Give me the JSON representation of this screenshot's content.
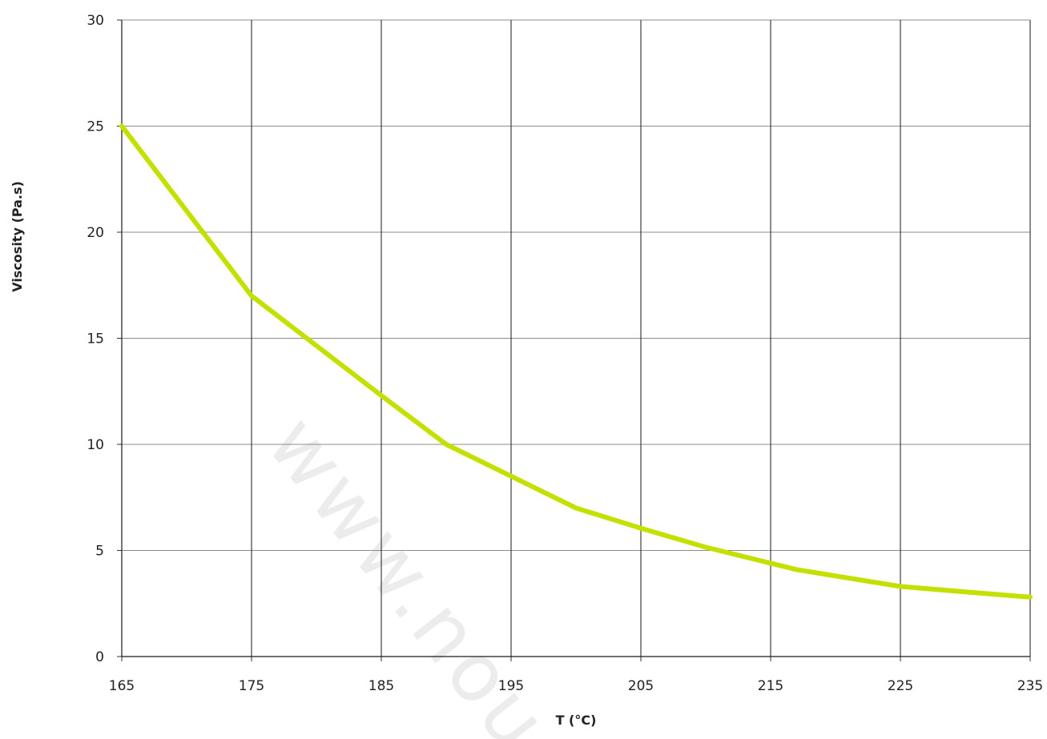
{
  "chart_data": {
    "type": "line",
    "title": "",
    "xlabel": "T (°C)",
    "ylabel": "Viscosity (Pa.s)",
    "xlim": [
      165,
      235
    ],
    "ylim": [
      0,
      30
    ],
    "xticks": [
      165,
      175,
      185,
      195,
      205,
      215,
      225,
      235
    ],
    "yticks": [
      0,
      5,
      10,
      15,
      20,
      25,
      30
    ],
    "grid": true,
    "legend": "none",
    "series": [
      {
        "color": "#c3e000",
        "x": [
          165,
          175,
          185,
          190,
          200,
          205,
          210,
          217,
          225,
          230,
          235
        ],
        "y": [
          25,
          17,
          12.3,
          10,
          7,
          6.05,
          5.15,
          4.1,
          3.3,
          3.05,
          2.8
        ]
      }
    ]
  },
  "watermark": {
    "text": "www.nou"
  }
}
